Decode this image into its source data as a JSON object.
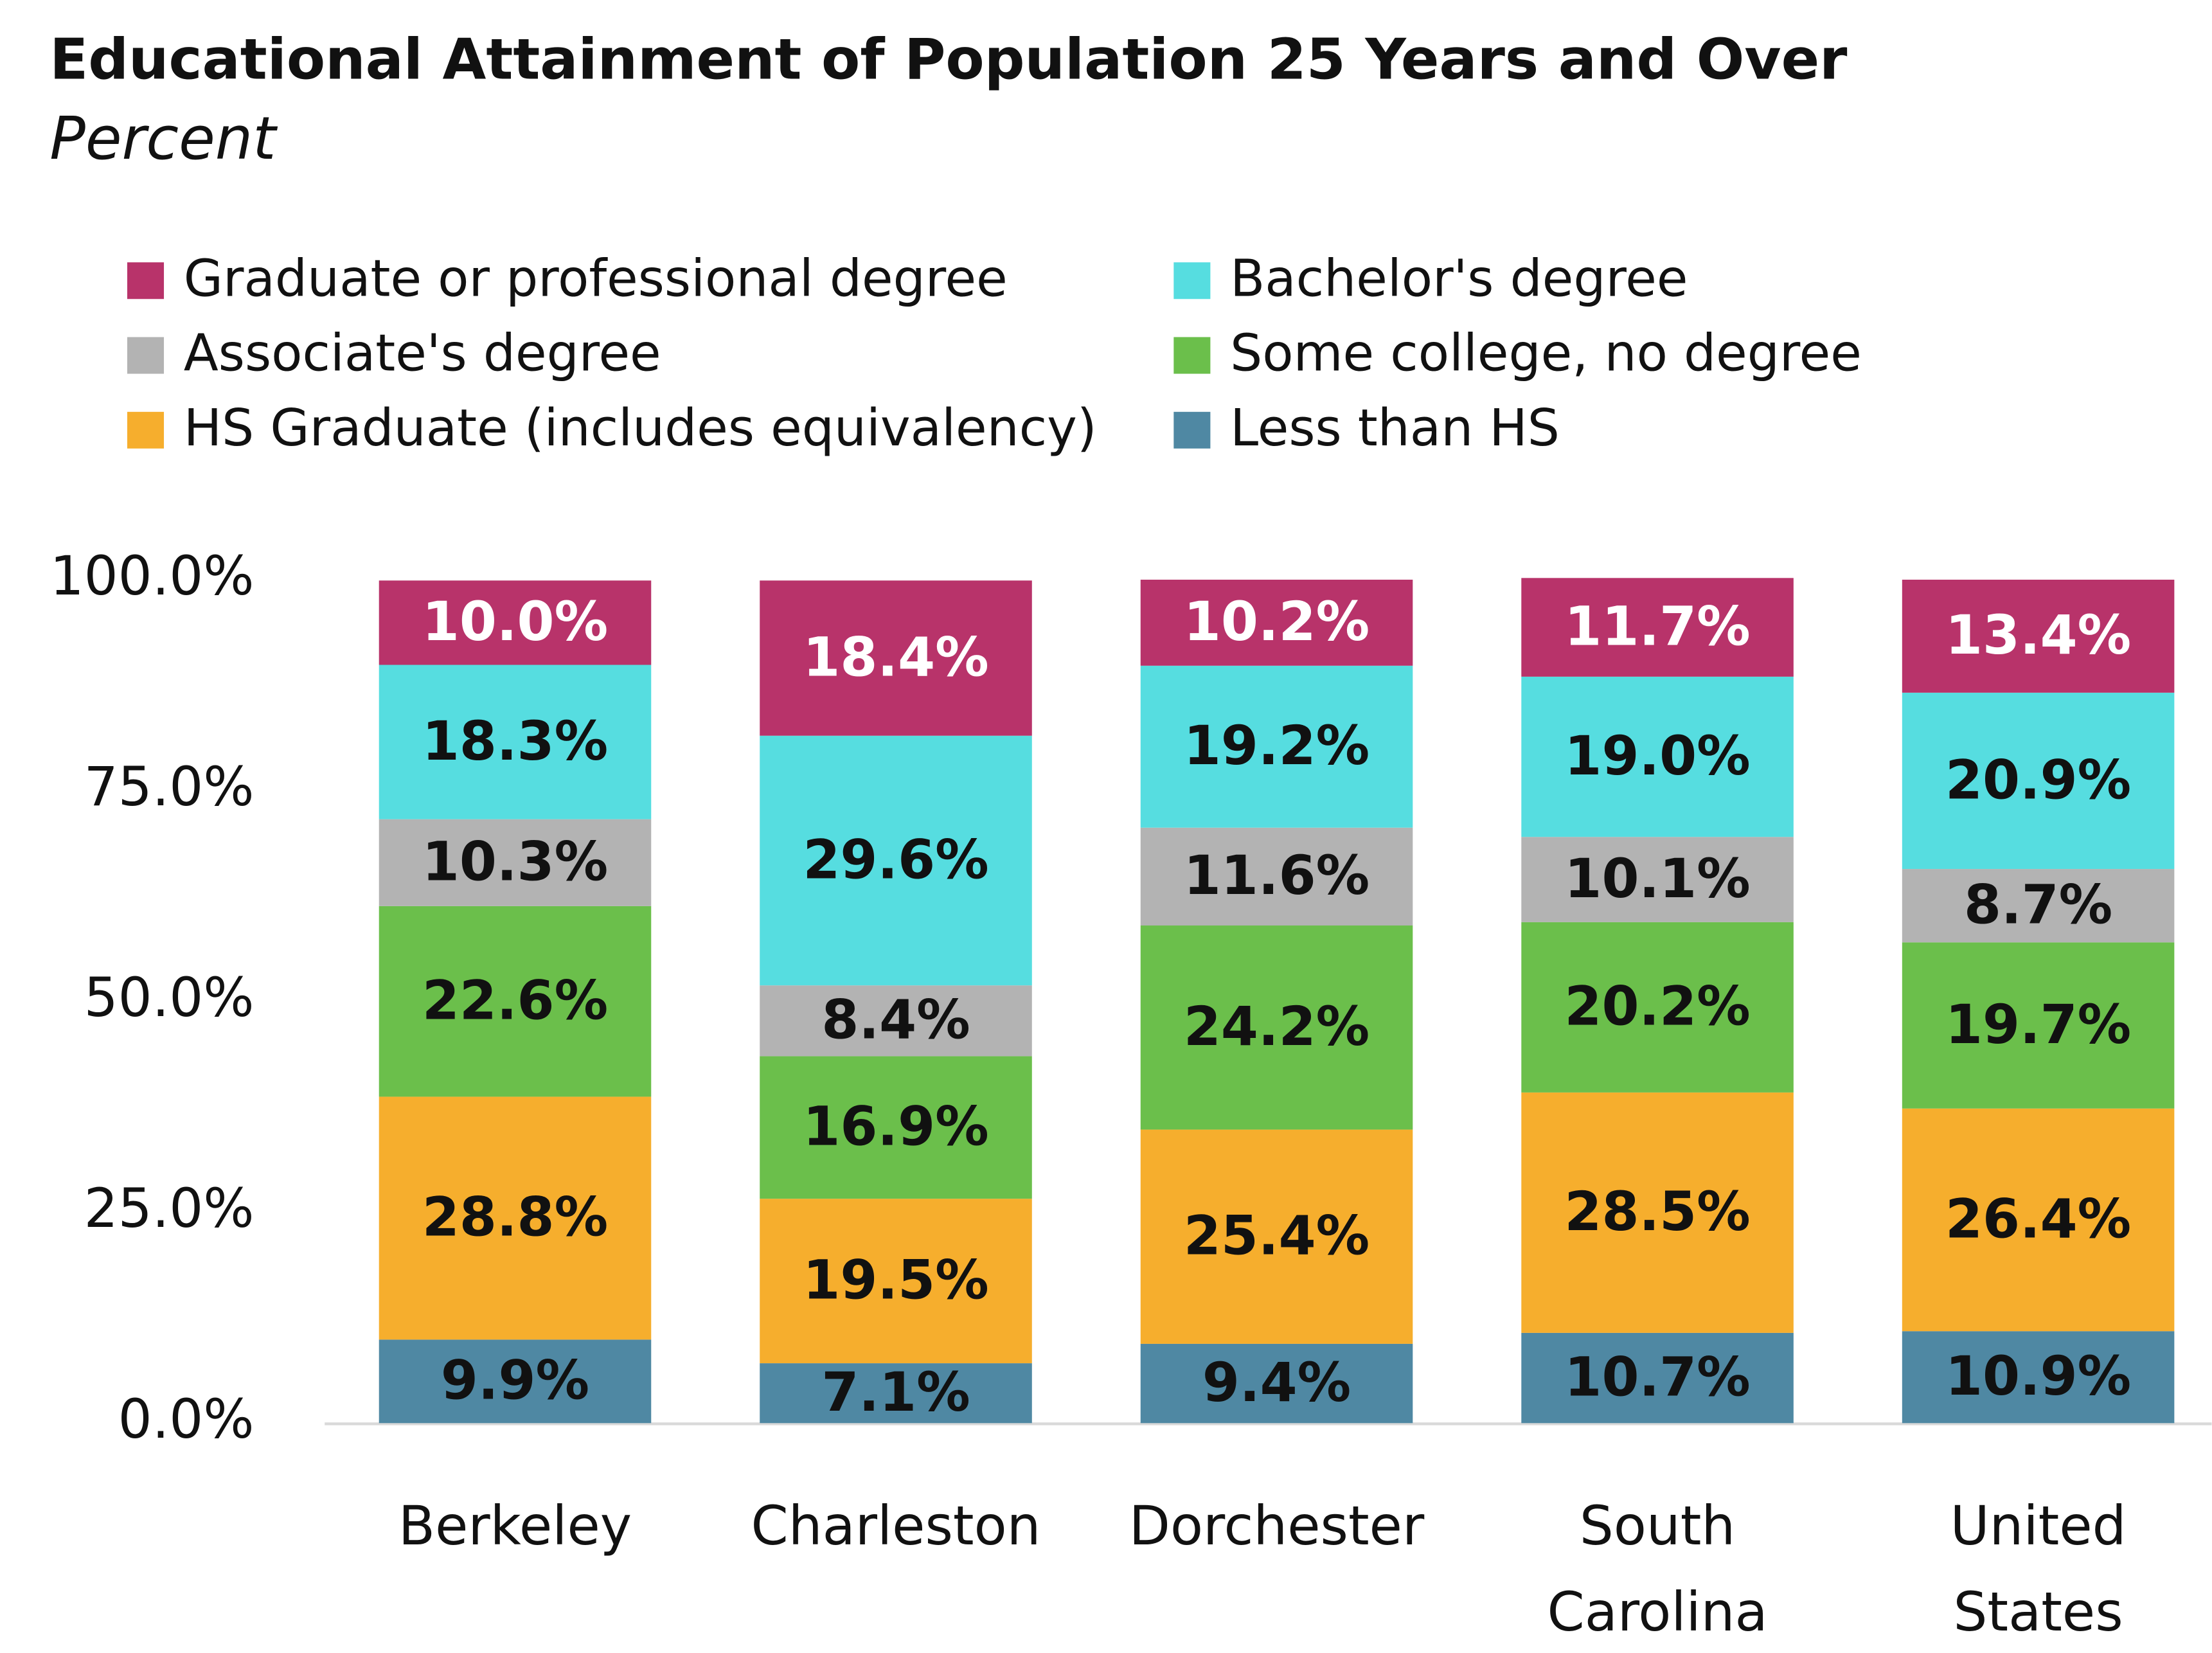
{
  "chart_data": {
    "type": "stacked_bar",
    "title": "Educational Attainment of Population 25 Years and Over",
    "subtitle": "Percent",
    "categories": [
      "Berkeley",
      "Charleston",
      "Dorchester",
      "South Carolina",
      "United States"
    ],
    "series": [
      {
        "name": "Graduate or professional degree",
        "color": "#b8336a",
        "label_color": "#ffffff",
        "values": [
          10.0,
          18.4,
          10.2,
          11.7,
          13.4
        ],
        "value_labels": [
          "10.0%",
          "18.4%",
          "10.2%",
          "11.7%",
          "13.4%"
        ]
      },
      {
        "name": "Bachelor's degree",
        "color": "#56dde0",
        "label_color": "#111111",
        "values": [
          18.3,
          29.6,
          19.2,
          19.0,
          20.9
        ],
        "value_labels": [
          "18.3%",
          "29.6%",
          "19.2%",
          "19.0%",
          "20.9%"
        ]
      },
      {
        "name": "Associate's degree",
        "color": "#b3b3b3",
        "label_color": "#111111",
        "values": [
          10.3,
          8.4,
          11.6,
          10.1,
          8.7
        ],
        "value_labels": [
          "10.3%",
          "8.4%",
          "11.6%",
          "10.1%",
          "8.7%"
        ]
      },
      {
        "name": "Some college, no degree",
        "color": "#6bbf4b",
        "label_color": "#111111",
        "values": [
          22.6,
          16.9,
          24.2,
          20.2,
          19.7
        ],
        "value_labels": [
          "22.6%",
          "16.9%",
          "24.2%",
          "20.2%",
          "19.7%"
        ]
      },
      {
        "name": "HS Graduate (includes equivalency)",
        "color": "#f6ae2d",
        "label_color": "#111111",
        "values": [
          28.8,
          19.5,
          25.4,
          28.5,
          26.4
        ],
        "value_labels": [
          "28.8%",
          "19.5%",
          "25.4%",
          "28.5%",
          "26.4%"
        ]
      },
      {
        "name": "Less than HS",
        "color": "#4f88a3",
        "label_color": "#111111",
        "values": [
          9.9,
          7.1,
          9.4,
          10.7,
          10.9
        ],
        "value_labels": [
          "9.9%",
          "7.1%",
          "9.4%",
          "10.7%",
          "10.9%"
        ]
      }
    ],
    "ylim": [
      0,
      100
    ],
    "yticks": [
      {
        "value": 0,
        "label": "0.0%"
      },
      {
        "value": 25,
        "label": "25.0%"
      },
      {
        "value": 50,
        "label": "50.0%"
      },
      {
        "value": 75,
        "label": "75.0%"
      },
      {
        "value": 100,
        "label": "100.0%"
      }
    ],
    "grid": false,
    "legend": "top"
  }
}
